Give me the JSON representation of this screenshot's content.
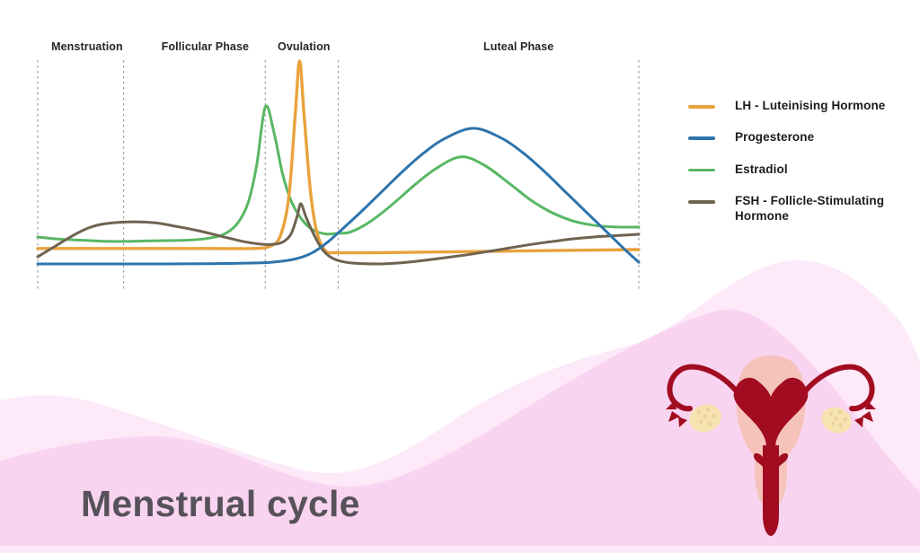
{
  "title": "Menstrual cycle",
  "legend": {
    "items": [
      {
        "label": "LH - Luteinising Hormone",
        "color": "#e9a23c"
      },
      {
        "label": "Progesterone",
        "color": "#2e74ac"
      },
      {
        "label": "Estradiol",
        "color": "#58b763"
      },
      {
        "label": "FSH - Follicle-Stimulating Hormone",
        "color": "#6f6350"
      }
    ]
  },
  "chart_data": {
    "type": "line",
    "title": "",
    "xlabel": "",
    "ylabel": "",
    "x_unit": "cycle day (estimated, 28-day cycle)",
    "y_unit": "relative hormone level (estimated, 0-100)",
    "xlim": [
      0,
      28
    ],
    "ylim": [
      0,
      100
    ],
    "grid": false,
    "axes_visible": false,
    "legend_position": "right",
    "phases": [
      {
        "label": "Menstruation",
        "start_day": 0,
        "end_day": 4,
        "label_day": 2.3
      },
      {
        "label": "Follicular Phase",
        "start_day": 4,
        "end_day": 10.6,
        "label_day": 7.8
      },
      {
        "label": "Ovulation",
        "start_day": 10.6,
        "end_day": 14,
        "label_day": 12.4
      },
      {
        "label": "Luteal Phase",
        "start_day": 14,
        "end_day": 28,
        "label_day": 22.4
      }
    ],
    "series": [
      {
        "name": "LH - Luteinising Hormone",
        "color": "#e9a23c",
        "points": [
          [
            0,
            10
          ],
          [
            2,
            10
          ],
          [
            4,
            10
          ],
          [
            6,
            10
          ],
          [
            8,
            10
          ],
          [
            10,
            10
          ],
          [
            10.8,
            11
          ],
          [
            11.3,
            16
          ],
          [
            11.7,
            35
          ],
          [
            12,
            75
          ],
          [
            12.2,
            100
          ],
          [
            12.4,
            75
          ],
          [
            12.7,
            38
          ],
          [
            13,
            18
          ],
          [
            13.4,
            9
          ],
          [
            14,
            8
          ],
          [
            16,
            8
          ],
          [
            20,
            8.5
          ],
          [
            24,
            9
          ],
          [
            28,
            9.5
          ]
        ]
      },
      {
        "name": "Progesterone",
        "color": "#2e74ac",
        "points": [
          [
            0,
            2.6
          ],
          [
            2,
            2.6
          ],
          [
            4,
            2.6
          ],
          [
            6,
            2.6
          ],
          [
            8,
            2.7
          ],
          [
            10,
            3
          ],
          [
            11,
            3.5
          ],
          [
            12,
            5
          ],
          [
            12.8,
            8
          ],
          [
            13.5,
            13
          ],
          [
            14.1,
            18.5
          ],
          [
            15,
            27
          ],
          [
            16,
            37
          ],
          [
            17,
            47
          ],
          [
            18,
            56
          ],
          [
            19,
            63
          ],
          [
            20.3,
            67.7
          ],
          [
            21.6,
            63
          ],
          [
            22.6,
            56
          ],
          [
            23.6,
            47
          ],
          [
            24.6,
            37
          ],
          [
            25.6,
            27
          ],
          [
            26.5,
            18
          ],
          [
            27.3,
            10
          ],
          [
            28,
            3.4
          ]
        ]
      },
      {
        "name": "Estradiol",
        "color": "#58b763",
        "points": [
          [
            0,
            15.5
          ],
          [
            1,
            14.5
          ],
          [
            2,
            14
          ],
          [
            3,
            13.5
          ],
          [
            4,
            13.4
          ],
          [
            5,
            13.6
          ],
          [
            6,
            13.8
          ],
          [
            7,
            14
          ],
          [
            8,
            15
          ],
          [
            8.7,
            17
          ],
          [
            9.3,
            22
          ],
          [
            9.8,
            32
          ],
          [
            10.2,
            50
          ],
          [
            10.6,
            78
          ],
          [
            11,
            66
          ],
          [
            11.4,
            46
          ],
          [
            11.8,
            33
          ],
          [
            12.3,
            24
          ],
          [
            12.8,
            19
          ],
          [
            13.4,
            17
          ],
          [
            14,
            17.3
          ],
          [
            14.6,
            18
          ],
          [
            15.5,
            23
          ],
          [
            16.5,
            31
          ],
          [
            17.5,
            40
          ],
          [
            18.5,
            48
          ],
          [
            19.7,
            54
          ],
          [
            20.8,
            50
          ],
          [
            22,
            41
          ],
          [
            23,
            33
          ],
          [
            24,
            27
          ],
          [
            25,
            23
          ],
          [
            26,
            21
          ],
          [
            27,
            20.3
          ],
          [
            28,
            20.3
          ]
        ]
      },
      {
        "name": "FSH - Follicle-Stimulating Hormone",
        "color": "#6f6350",
        "points": [
          [
            0,
            6
          ],
          [
            0.8,
            11
          ],
          [
            1.6,
            16
          ],
          [
            2.4,
            20
          ],
          [
            3.2,
            22
          ],
          [
            4.4,
            22.8
          ],
          [
            5.5,
            22.3
          ],
          [
            6.5,
            20.5
          ],
          [
            7.5,
            18.5
          ],
          [
            8.5,
            16
          ],
          [
            9.5,
            13.5
          ],
          [
            10.3,
            12.2
          ],
          [
            10.9,
            12
          ],
          [
            11.4,
            13
          ],
          [
            11.8,
            17
          ],
          [
            12.1,
            26
          ],
          [
            12.26,
            31.5
          ],
          [
            12.5,
            25
          ],
          [
            12.9,
            16
          ],
          [
            13.3,
            9
          ],
          [
            13.8,
            5
          ],
          [
            14.5,
            3.2
          ],
          [
            15.8,
            2.6
          ],
          [
            17,
            3.2
          ],
          [
            18,
            4.3
          ],
          [
            19,
            5.6
          ],
          [
            20,
            7
          ],
          [
            21,
            8.6
          ],
          [
            22,
            10.3
          ],
          [
            23,
            12
          ],
          [
            24,
            13.4
          ],
          [
            25,
            14.7
          ],
          [
            26,
            15.6
          ],
          [
            27,
            16.2
          ],
          [
            28,
            16.8
          ]
        ]
      }
    ]
  },
  "colors": {
    "background": "#ffffff",
    "wave_back": "#fde9f8",
    "wave_front": "#f9d4f0",
    "dash": "#9d9d9d",
    "phase_label": "#262626",
    "legend_text": "#1c1c1c",
    "title_text": "#57525a",
    "uterus_body": "#f5c3ba",
    "uterus_dark": "#a10c20",
    "ovary": "#f6e3b0",
    "ovary_dot": "#ecd29a"
  }
}
